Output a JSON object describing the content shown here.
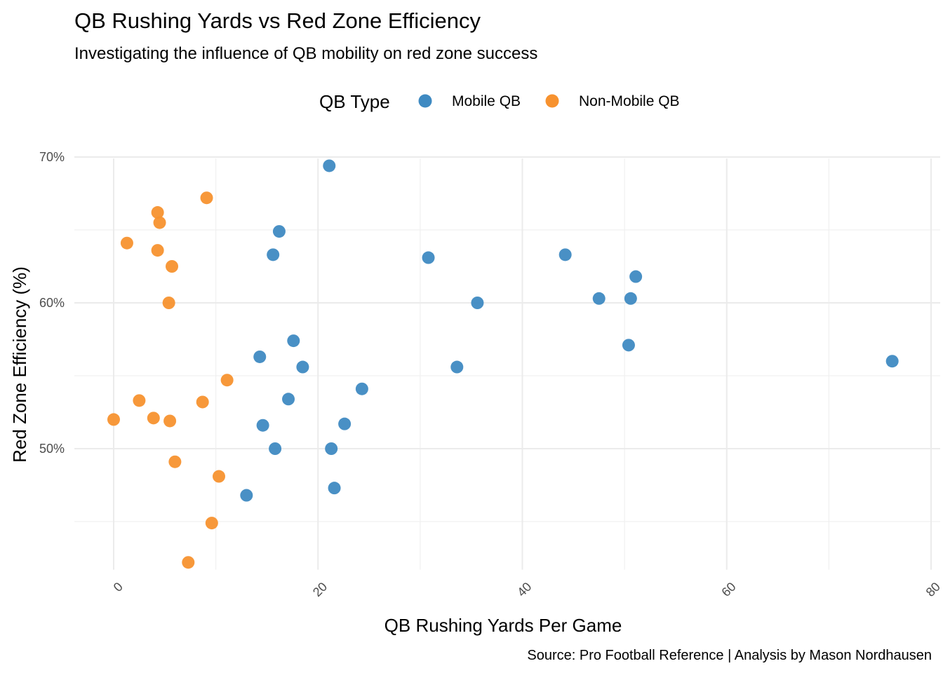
{
  "chart_data": {
    "type": "scatter",
    "title": "QB Rushing Yards vs Red Zone Efficiency",
    "subtitle": "Investigating the influence of QB mobility on red zone success",
    "xlabel": "QB Rushing Yards Per Game",
    "ylabel": "Red Zone Efficiency (%)",
    "caption": "Source: Pro Football Reference | Analysis by Mason Nordhausen",
    "legend": {
      "title": "QB Type",
      "position": "top"
    },
    "xlim": [
      0,
      80
    ],
    "ylim": [
      41.7,
      69.9
    ],
    "x_ticks": [
      0,
      20,
      40,
      60,
      80
    ],
    "x_tick_labels": [
      "0",
      "20",
      "40",
      "60",
      "80"
    ],
    "y_ticks": [
      50,
      60,
      70
    ],
    "y_tick_labels": [
      "50%",
      "60%",
      "70%"
    ],
    "grid": true,
    "series": [
      {
        "name": "Mobile QB",
        "color": "#3f8ac2",
        "points": [
          {
            "x": 21.1,
            "y": 69.4
          },
          {
            "x": 16.2,
            "y": 64.9
          },
          {
            "x": 15.6,
            "y": 63.3
          },
          {
            "x": 30.8,
            "y": 63.1
          },
          {
            "x": 44.2,
            "y": 63.3
          },
          {
            "x": 51.1,
            "y": 61.8
          },
          {
            "x": 47.5,
            "y": 60.3
          },
          {
            "x": 50.6,
            "y": 60.3
          },
          {
            "x": 35.6,
            "y": 60.0
          },
          {
            "x": 17.6,
            "y": 57.4
          },
          {
            "x": 50.4,
            "y": 57.1
          },
          {
            "x": 14.3,
            "y": 56.3
          },
          {
            "x": 18.5,
            "y": 55.6
          },
          {
            "x": 33.6,
            "y": 55.6
          },
          {
            "x": 76.2,
            "y": 56.0
          },
          {
            "x": 24.3,
            "y": 54.1
          },
          {
            "x": 17.1,
            "y": 53.4
          },
          {
            "x": 14.6,
            "y": 51.6
          },
          {
            "x": 22.6,
            "y": 51.7
          },
          {
            "x": 15.8,
            "y": 50.0
          },
          {
            "x": 21.3,
            "y": 50.0
          },
          {
            "x": 13.0,
            "y": 46.8
          },
          {
            "x": 21.6,
            "y": 47.3
          }
        ]
      },
      {
        "name": "Non-Mobile QB",
        "color": "#f7922f",
        "points": [
          {
            "x": 9.1,
            "y": 67.2
          },
          {
            "x": 4.3,
            "y": 66.2
          },
          {
            "x": 4.5,
            "y": 65.5
          },
          {
            "x": 1.3,
            "y": 64.1
          },
          {
            "x": 4.3,
            "y": 63.6
          },
          {
            "x": 5.7,
            "y": 62.5
          },
          {
            "x": 5.4,
            "y": 60.0
          },
          {
            "x": 11.1,
            "y": 54.7
          },
          {
            "x": 2.5,
            "y": 53.3
          },
          {
            "x": 8.7,
            "y": 53.2
          },
          {
            "x": 3.9,
            "y": 52.1
          },
          {
            "x": 0.0,
            "y": 52.0
          },
          {
            "x": 5.5,
            "y": 51.9
          },
          {
            "x": 6.0,
            "y": 49.1
          },
          {
            "x": 10.3,
            "y": 48.1
          },
          {
            "x": 9.6,
            "y": 44.9
          },
          {
            "x": 7.3,
            "y": 42.2
          }
        ]
      }
    ]
  }
}
